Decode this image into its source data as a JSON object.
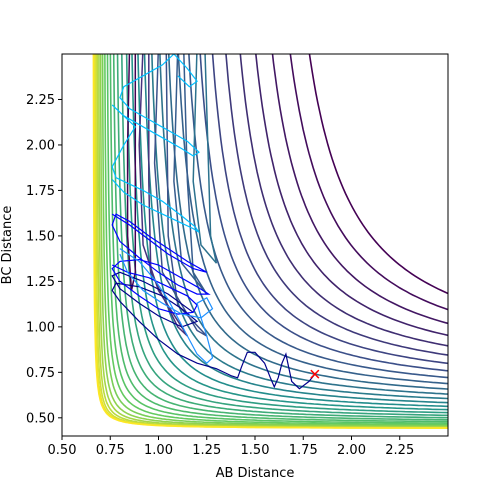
{
  "chart_data": {
    "type": "contour",
    "title": "",
    "xlabel": "AB Distance",
    "ylabel": "BC Distance",
    "xlim": [
      0.5,
      2.5
    ],
    "ylim": [
      0.4,
      2.5
    ],
    "xticks": [
      "0.50",
      "0.75",
      "1.00",
      "1.25",
      "1.50",
      "1.75",
      "2.00",
      "2.25"
    ],
    "yticks": [
      "0.50",
      "0.75",
      "1.00",
      "1.25",
      "1.50",
      "1.75",
      "2.00",
      "2.25"
    ],
    "grid": false,
    "legend": "none",
    "colormap": [
      "#440154",
      "#3b528b",
      "#21918c",
      "#5ec962",
      "#fde725"
    ],
    "trajectory_colors": [
      "#0000ff",
      "#00bfff"
    ],
    "marker": {
      "symbol": "x",
      "color": "#ff0000",
      "x": 1.81,
      "y": 0.74
    },
    "trajectories": [
      {
        "name": "",
        "color": "#00008b",
        "points": [
          [
            1.81,
            0.74
          ],
          [
            1.78,
            0.7
          ],
          [
            1.73,
            0.66
          ],
          [
            1.69,
            0.7
          ],
          [
            1.66,
            0.85
          ],
          [
            1.64,
            0.8
          ],
          [
            1.62,
            0.72
          ],
          [
            1.6,
            0.67
          ],
          [
            1.58,
            0.72
          ],
          [
            1.55,
            0.8
          ],
          [
            1.5,
            0.86
          ],
          [
            1.46,
            0.86
          ],
          [
            1.43,
            0.78
          ],
          [
            1.41,
            0.72
          ],
          [
            1.38,
            0.73
          ],
          [
            1.3,
            0.77
          ],
          [
            1.2,
            0.8
          ],
          [
            1.1,
            0.85
          ],
          [
            1.0,
            0.93
          ],
          [
            0.9,
            1.03
          ],
          [
            0.8,
            1.14
          ],
          [
            0.76,
            1.2
          ],
          [
            0.78,
            1.24
          ],
          [
            0.9,
            1.22
          ],
          [
            1.02,
            1.17
          ],
          [
            1.12,
            1.1
          ],
          [
            1.2,
            1.03
          ],
          [
            1.12,
            1.0
          ],
          [
            1.0,
            1.06
          ],
          [
            0.9,
            1.13
          ],
          [
            0.8,
            1.21
          ],
          [
            0.76,
            1.28
          ],
          [
            0.8,
            1.3
          ],
          [
            0.92,
            1.25
          ],
          [
            1.05,
            1.18
          ],
          [
            1.18,
            1.08
          ]
        ]
      },
      {
        "name": "",
        "color": "#0000ff",
        "points": [
          [
            0.76,
            1.34
          ],
          [
            0.84,
            1.3
          ],
          [
            0.95,
            1.27
          ],
          [
            1.05,
            1.22
          ],
          [
            1.15,
            1.17
          ],
          [
            1.2,
            1.12
          ],
          [
            1.18,
            1.08
          ],
          [
            1.1,
            1.07
          ],
          [
            1.0,
            1.1
          ],
          [
            0.9,
            1.17
          ],
          [
            0.8,
            1.25
          ],
          [
            0.76,
            1.32
          ],
          [
            0.8,
            1.36
          ],
          [
            0.9,
            1.37
          ],
          [
            1.0,
            1.34
          ],
          [
            1.1,
            1.28
          ],
          [
            1.2,
            1.22
          ],
          [
            1.26,
            1.18
          ],
          [
            1.2,
            1.18
          ],
          [
            1.1,
            1.23
          ],
          [
            1.0,
            1.3
          ],
          [
            0.9,
            1.38
          ],
          [
            0.8,
            1.47
          ],
          [
            0.76,
            1.56
          ],
          [
            0.78,
            1.62
          ],
          [
            0.85,
            1.58
          ],
          [
            0.95,
            1.5
          ],
          [
            1.05,
            1.43
          ],
          [
            1.15,
            1.36
          ],
          [
            1.25,
            1.3
          ],
          [
            1.18,
            1.32
          ],
          [
            1.05,
            1.4
          ],
          [
            0.95,
            1.48
          ],
          [
            0.85,
            1.56
          ],
          [
            0.76,
            1.62
          ]
        ]
      },
      {
        "name": "",
        "color": "#1e90ff",
        "points": [
          [
            0.8,
            1.43
          ],
          [
            0.9,
            1.36
          ],
          [
            0.98,
            1.26
          ],
          [
            1.05,
            1.15
          ],
          [
            1.1,
            1.05
          ],
          [
            1.15,
            0.95
          ],
          [
            1.2,
            0.85
          ],
          [
            1.25,
            0.8
          ],
          [
            1.28,
            0.83
          ],
          [
            1.25,
            0.95
          ],
          [
            1.22,
            1.05
          ],
          [
            1.2,
            1.13
          ],
          [
            1.25,
            1.16
          ],
          [
            1.28,
            1.1
          ],
          [
            1.22,
            1.05
          ],
          [
            1.12,
            1.07
          ],
          [
            1.02,
            1.13
          ],
          [
            0.92,
            1.2
          ],
          [
            0.84,
            1.3
          ],
          [
            0.8,
            1.4
          ]
        ]
      },
      {
        "name": "",
        "color": "#00bfff",
        "points": [
          [
            0.76,
            1.81
          ],
          [
            0.82,
            1.74
          ],
          [
            0.92,
            1.67
          ],
          [
            1.02,
            1.62
          ],
          [
            1.12,
            1.57
          ],
          [
            1.18,
            1.54
          ],
          [
            1.21,
            1.52
          ],
          [
            1.19,
            1.55
          ],
          [
            1.12,
            1.61
          ],
          [
            1.02,
            1.69
          ],
          [
            0.92,
            1.75
          ],
          [
            0.84,
            1.79
          ],
          [
            0.78,
            1.82
          ],
          [
            0.76,
            1.88
          ],
          [
            0.82,
            2.0
          ],
          [
            0.88,
            2.1
          ],
          [
            0.78,
            2.2
          ],
          [
            0.76,
            2.22
          ],
          [
            0.82,
            2.16
          ],
          [
            0.92,
            2.1
          ],
          [
            1.02,
            2.04
          ],
          [
            1.12,
            1.98
          ],
          [
            1.18,
            1.94
          ],
          [
            1.21,
            1.96
          ],
          [
            1.15,
            2.02
          ],
          [
            1.05,
            2.08
          ],
          [
            0.95,
            2.14
          ],
          [
            0.85,
            2.2
          ],
          [
            0.8,
            2.26
          ],
          [
            0.82,
            2.32
          ],
          [
            0.92,
            2.38
          ],
          [
            1.02,
            2.44
          ],
          [
            1.08,
            2.5
          ]
        ]
      },
      {
        "name": "",
        "color": "#00bfff",
        "points": [
          [
            1.1,
            2.38
          ],
          [
            1.16,
            2.32
          ],
          [
            1.2,
            2.35
          ],
          [
            1.15,
            2.42
          ],
          [
            1.08,
            2.5
          ]
        ]
      }
    ]
  }
}
